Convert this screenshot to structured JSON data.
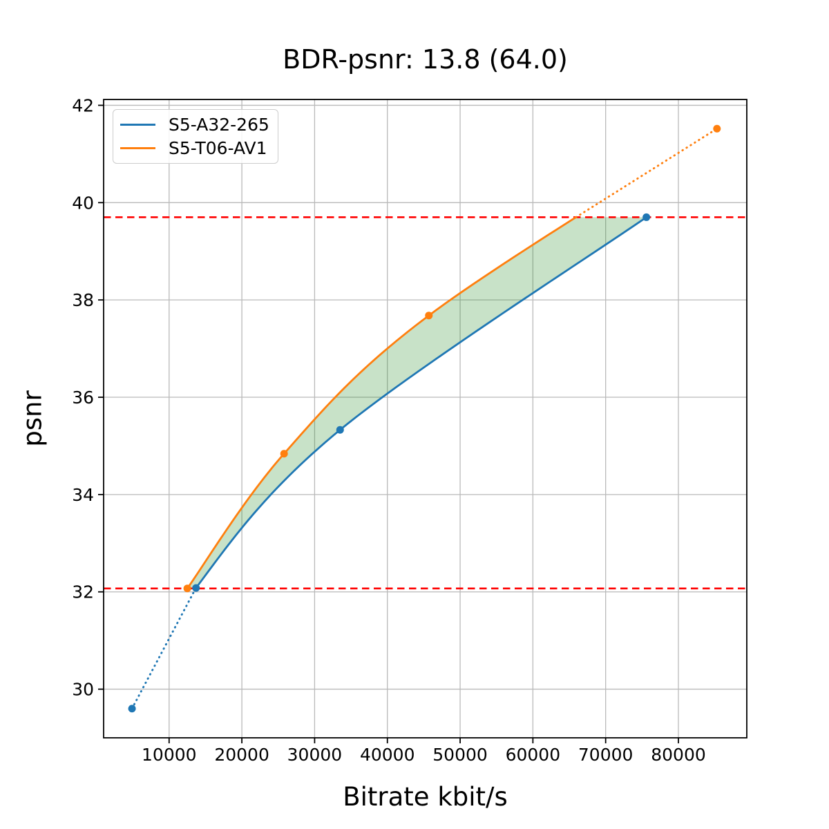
{
  "chart_data": {
    "type": "line",
    "title": "BDR-psnr: 13.8 (64.0)",
    "xlabel": "Bitrate kbit/s",
    "ylabel": "psnr",
    "xlim": [
      1000,
      89400
    ],
    "ylim": [
      29.0,
      42.12
    ],
    "xticks": [
      10000,
      20000,
      30000,
      40000,
      50000,
      60000,
      70000,
      80000
    ],
    "yticks": [
      30,
      32,
      34,
      36,
      38,
      40,
      42
    ],
    "grid": true,
    "legend_position": "upper left",
    "series": [
      {
        "name": "S5-A32-265",
        "color": "#1f77b4",
        "x": [
          4900,
          13700,
          33500,
          75600
        ],
        "y": [
          29.6,
          32.08,
          35.33,
          39.7
        ]
      },
      {
        "name": "S5-T06-AV1",
        "color": "#ff7f0e",
        "x": [
          12500,
          25800,
          45700,
          85300
        ],
        "y": [
          32.07,
          34.84,
          37.68,
          41.52
        ]
      }
    ],
    "quality_limits": [
      32.07,
      39.7
    ],
    "limit_line_color": "#ff0000",
    "fill_between_color": "rgba(34,139,34,0.25)",
    "grid_color": "#b9b9b9",
    "axis_color": "#000000"
  }
}
